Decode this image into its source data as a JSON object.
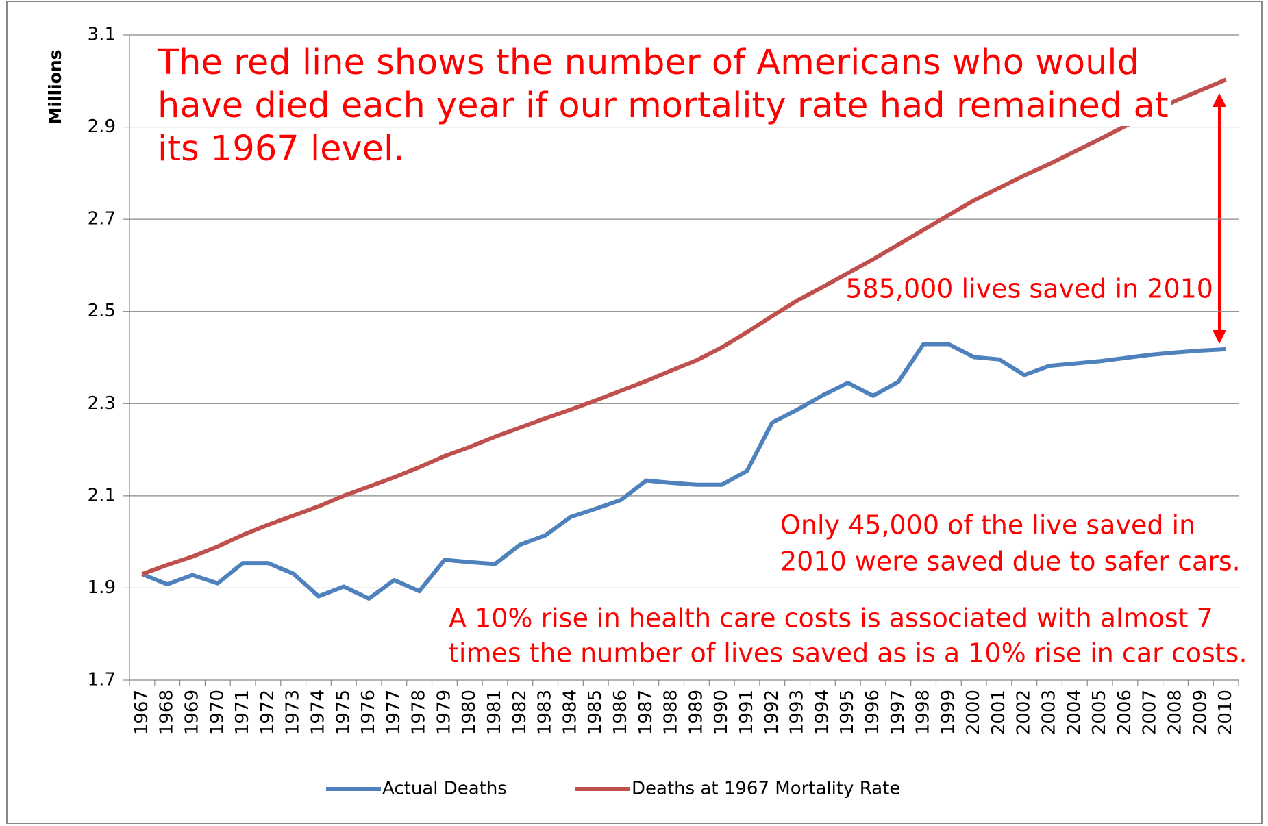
{
  "chart_data": {
    "type": "line",
    "y_axis_label": "Millions",
    "categories": [
      "1967",
      "1968",
      "1969",
      "1970",
      "1971",
      "1972",
      "1973",
      "1974",
      "1975",
      "1976",
      "1977",
      "1978",
      "1979",
      "1980",
      "1981",
      "1982",
      "1983",
      "1984",
      "1985",
      "1986",
      "1987",
      "1988",
      "1989",
      "1990",
      "1991",
      "1992",
      "1993",
      "1994",
      "1995",
      "1996",
      "1997",
      "1998",
      "1999",
      "2000",
      "2001",
      "2002",
      "2003",
      "2004",
      "2005",
      "2006",
      "2007",
      "2008",
      "2009",
      "2010"
    ],
    "series": [
      {
        "name": "Actual Deaths",
        "color": "#4f81bd",
        "values": [
          1.93,
          1.908,
          1.928,
          1.91,
          1.954,
          1.954,
          1.931,
          1.882,
          1.903,
          1.877,
          1.917,
          1.893,
          1.961,
          1.956,
          1.952,
          1.994,
          2.014,
          2.054,
          2.072,
          2.091,
          2.133,
          2.128,
          2.124,
          2.124,
          2.154,
          2.259,
          2.287,
          2.318,
          2.345,
          2.317,
          2.347,
          2.429,
          2.429,
          2.401,
          2.396,
          2.362,
          2.382,
          2.387,
          2.392,
          2.399,
          2.406,
          2.411,
          2.415,
          2.418
        ]
      },
      {
        "name": "Deaths at 1967 Mortality Rate",
        "color": "#c0504d",
        "values": [
          1.93,
          1.95,
          1.968,
          1.99,
          2.015,
          2.037,
          2.057,
          2.077,
          2.1,
          2.12,
          2.14,
          2.162,
          2.186,
          2.206,
          2.228,
          2.248,
          2.268,
          2.287,
          2.307,
          2.328,
          2.349,
          2.372,
          2.394,
          2.422,
          2.455,
          2.49,
          2.524,
          2.553,
          2.583,
          2.613,
          2.645,
          2.677,
          2.709,
          2.741,
          2.768,
          2.795,
          2.82,
          2.847,
          2.874,
          2.902,
          2.93,
          2.957,
          2.98,
          3.003
        ]
      }
    ],
    "ylim": [
      1.7,
      3.1
    ],
    "yticks": [
      1.7,
      1.9,
      2.1,
      2.3,
      2.5,
      2.7,
      2.9,
      3.1
    ],
    "grid": true,
    "legend": "bottom",
    "annotation_color": "#ff0000",
    "annotations": [
      {
        "lines": [
          "The red line shows the number of Americans who would",
          "have died each year if our mortality rate had remained at",
          "its 1967 level."
        ]
      },
      {
        "lines": [
          "585,000 lives saved in 2010"
        ]
      },
      {
        "lines": [
          "Only 45,000 of the live saved in",
          "2010 were saved due to safer cars."
        ]
      },
      {
        "lines": [
          "A 10% rise in health care costs is associated with almost 7",
          "times the number of lives saved as is a 10% rise in car costs."
        ]
      }
    ]
  }
}
